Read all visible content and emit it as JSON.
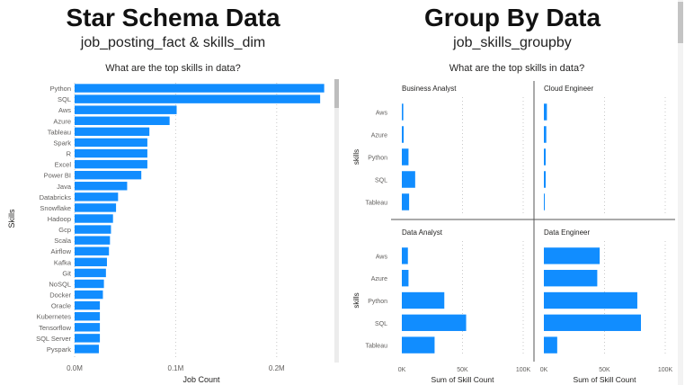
{
  "left_panel": {
    "heading": "Star Schema Data",
    "subheading": "job_posting_fact & skills_dim",
    "chart_title": "What are the top skills in data?"
  },
  "right_panel": {
    "heading": "Group By Data",
    "subheading": "job_skills_groupby",
    "chart_title": "What are the top skills in data?"
  },
  "colors": {
    "bar": "#118DFF",
    "grid": "#c8c8c8",
    "divider": "#555555",
    "text": "#605E5C"
  },
  "chart_data": [
    {
      "type": "bar",
      "orientation": "horizontal",
      "title": "What are the top skills in data?",
      "xlabel": "Job Count",
      "ylabel": "Skills",
      "categories": [
        "Python",
        "SQL",
        "Aws",
        "Azure",
        "Tableau",
        "Spark",
        "R",
        "Excel",
        "Power BI",
        "Java",
        "Databricks",
        "Snowflake",
        "Hadoop",
        "Gcp",
        "Scala",
        "Airflow",
        "Kafka",
        "Git",
        "NoSQL",
        "Docker",
        "Oracle",
        "Kubernetes",
        "Tensorflow",
        "SQL Server",
        "Pyspark"
      ],
      "values": [
        0.247,
        0.243,
        0.101,
        0.094,
        0.074,
        0.072,
        0.072,
        0.072,
        0.066,
        0.052,
        0.043,
        0.041,
        0.038,
        0.036,
        0.035,
        0.034,
        0.032,
        0.031,
        0.029,
        0.028,
        0.025,
        0.025,
        0.025,
        0.025,
        0.024
      ],
      "xticks": [
        "0.0M",
        "0.1M",
        "0.2M"
      ],
      "xlim": [
        0,
        0.25
      ],
      "grid": true
    },
    {
      "type": "bar",
      "orientation": "horizontal",
      "title": "What are the top skills in data?",
      "xlabel": "Sum of Skill Count",
      "ylabel": "skills",
      "xticks": [
        "0K",
        "50K",
        "100K"
      ],
      "xlim": [
        0,
        100
      ],
      "grid": true,
      "facets": [
        {
          "name": "Business Analyst",
          "categories": [
            "Aws",
            "Azure",
            "Python",
            "SQL",
            "Tableau"
          ],
          "values": [
            1.2,
            1.5,
            5.5,
            11,
            6
          ]
        },
        {
          "name": "Cloud Engineer",
          "categories": [
            "Aws",
            "Azure",
            "Python",
            "SQL",
            "Tableau"
          ],
          "values": [
            2.5,
            2,
            1.5,
            1.5,
            0.5
          ]
        },
        {
          "name": "Data Analyst",
          "categories": [
            "Aws",
            "Azure",
            "Python",
            "SQL",
            "Tableau"
          ],
          "values": [
            5,
            5.5,
            35,
            53,
            27
          ]
        },
        {
          "name": "Data Engineer",
          "categories": [
            "Aws",
            "Azure",
            "Python",
            "SQL",
            "Tableau"
          ],
          "values": [
            46,
            44,
            77,
            80,
            11
          ]
        }
      ]
    }
  ]
}
